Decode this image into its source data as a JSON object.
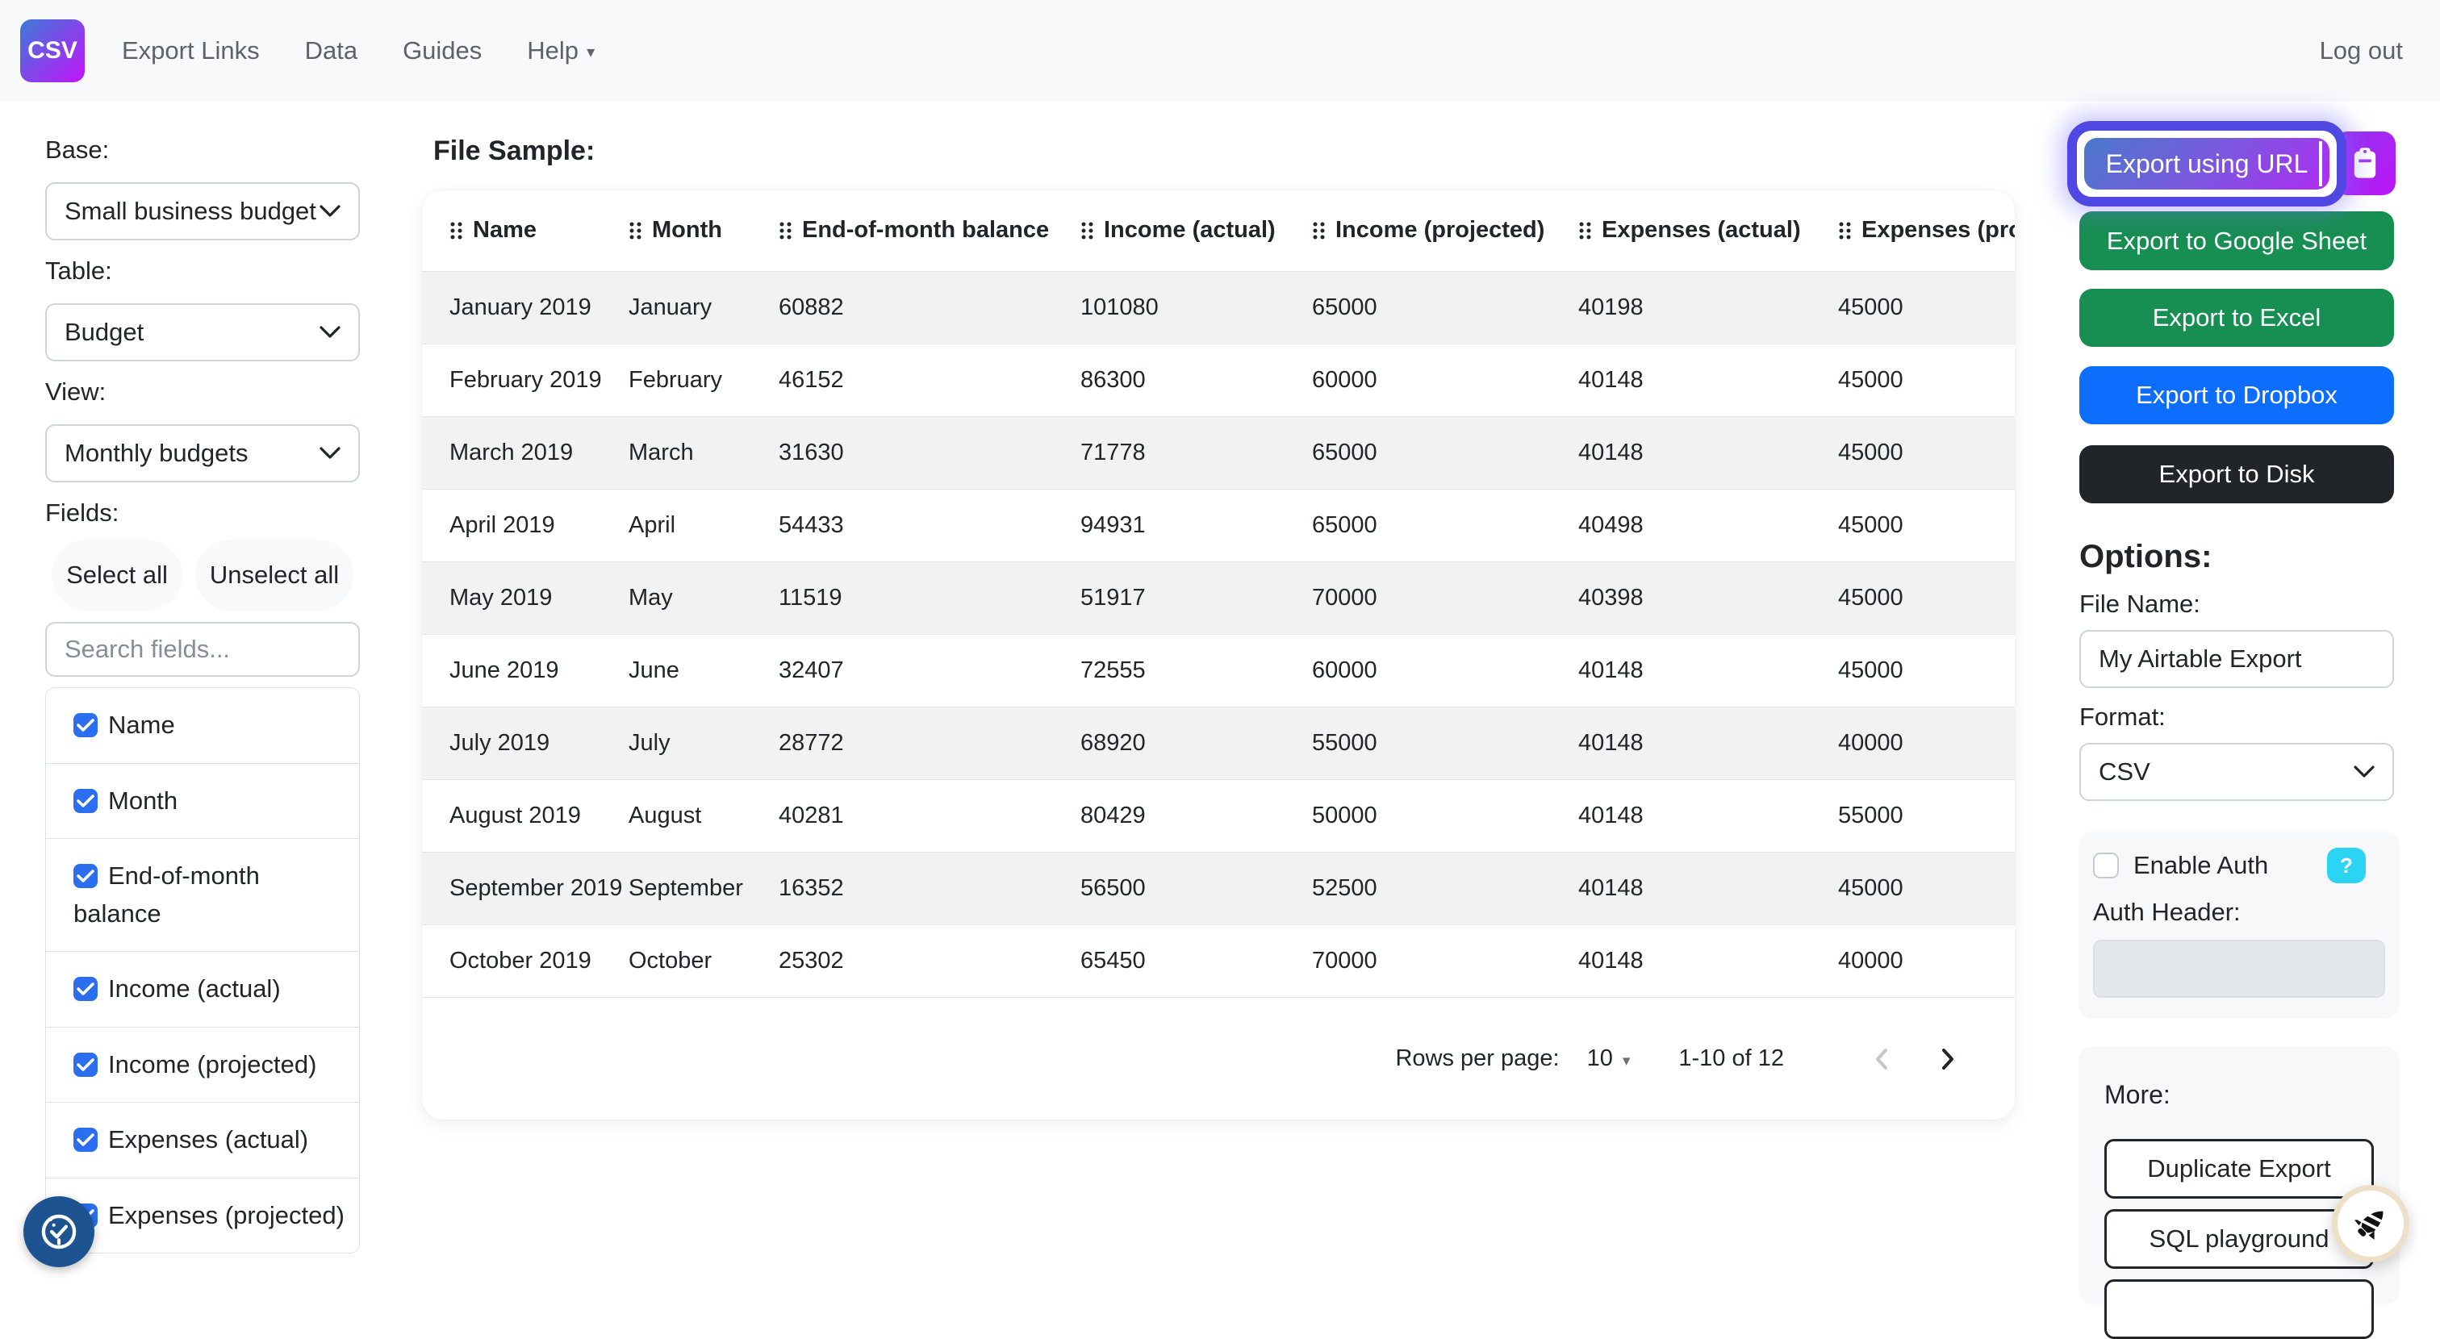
{
  "colors": {
    "accent_gradient_from": "#3d7bd7",
    "accent_gradient_to": "#c214fb",
    "focus_ring": "#4f48e2",
    "checkbox_blue": "#2b6ef0",
    "green": "#178e52",
    "dropbox_blue": "#0d6efd",
    "disk_dark": "#212529",
    "help_badge_cyan": "#2bd4f2",
    "stripe_gray": "#f2f2f2",
    "navbar_bg": "#f8f9fa"
  },
  "navbar": {
    "logo": "CSV",
    "links": [
      {
        "label": "Export Links",
        "dropdown": false
      },
      {
        "label": "Data",
        "dropdown": false
      },
      {
        "label": "Guides",
        "dropdown": false
      },
      {
        "label": "Help",
        "dropdown": true
      }
    ],
    "logout": "Log out"
  },
  "sidebar": {
    "base_label": "Base:",
    "base_value": "Small business budget",
    "table_label": "Table:",
    "table_value": "Budget",
    "view_label": "View:",
    "view_value": "Monthly budgets",
    "fields_label": "Fields:",
    "select_all": "Select all",
    "unselect_all": "Unselect all",
    "search_placeholder": "Search fields...",
    "fields": [
      {
        "label": "Name",
        "checked": true
      },
      {
        "label": "Month",
        "checked": true
      },
      {
        "label": "End-of-month balance",
        "checked": true
      },
      {
        "label": "Income (actual)",
        "checked": true
      },
      {
        "label": "Income (projected)",
        "checked": true
      },
      {
        "label": "Expenses (actual)",
        "checked": true
      },
      {
        "label": "Expenses (projected)",
        "checked": true
      }
    ]
  },
  "main": {
    "heading": "File Sample:",
    "table": {
      "columns": [
        "Name",
        "Month",
        "End-of-month balance",
        "Income (actual)",
        "Income (projected)",
        "Expenses (actual)",
        "Expenses (projected)"
      ],
      "rows": [
        [
          "January 2019",
          "January",
          "60882",
          "101080",
          "65000",
          "40198",
          "45000"
        ],
        [
          "February 2019",
          "February",
          "46152",
          "86300",
          "60000",
          "40148",
          "45000"
        ],
        [
          "March 2019",
          "March",
          "31630",
          "71778",
          "65000",
          "40148",
          "45000"
        ],
        [
          "April 2019",
          "April",
          "54433",
          "94931",
          "65000",
          "40498",
          "45000"
        ],
        [
          "May 2019",
          "May",
          "11519",
          "51917",
          "70000",
          "40398",
          "45000"
        ],
        [
          "June 2019",
          "June",
          "32407",
          "72555",
          "60000",
          "40148",
          "45000"
        ],
        [
          "July 2019",
          "July",
          "28772",
          "68920",
          "55000",
          "40148",
          "40000"
        ],
        [
          "August 2019",
          "August",
          "40281",
          "80429",
          "50000",
          "40148",
          "55000"
        ],
        [
          "September 2019",
          "September",
          "16352",
          "56500",
          "52500",
          "40148",
          "45000"
        ],
        [
          "October 2019",
          "October",
          "25302",
          "65450",
          "70000",
          "40148",
          "40000"
        ]
      ]
    },
    "pagination": {
      "rows_per_page_label": "Rows per page:",
      "rows_per_page": "10",
      "range": "1-10 of 12"
    }
  },
  "export_panel": {
    "url_button": "Export using URL",
    "buttons": [
      {
        "label": "Export to Google Sheet",
        "color": "#178e52"
      },
      {
        "label": "Export to Excel",
        "color": "#178e52"
      },
      {
        "label": "Export to Dropbox",
        "color": "#0d6efd"
      },
      {
        "label": "Export to Disk",
        "color": "#212529"
      }
    ],
    "options_heading": "Options:",
    "file_name_label": "File Name:",
    "file_name_value": "My Airtable Export",
    "format_label": "Format:",
    "format_value": "CSV",
    "enable_auth_label": "Enable Auth",
    "help_badge": "?",
    "auth_header_label": "Auth Header:",
    "more_label": "More:",
    "more_buttons": [
      "Duplicate Export",
      "SQL playground"
    ]
  }
}
